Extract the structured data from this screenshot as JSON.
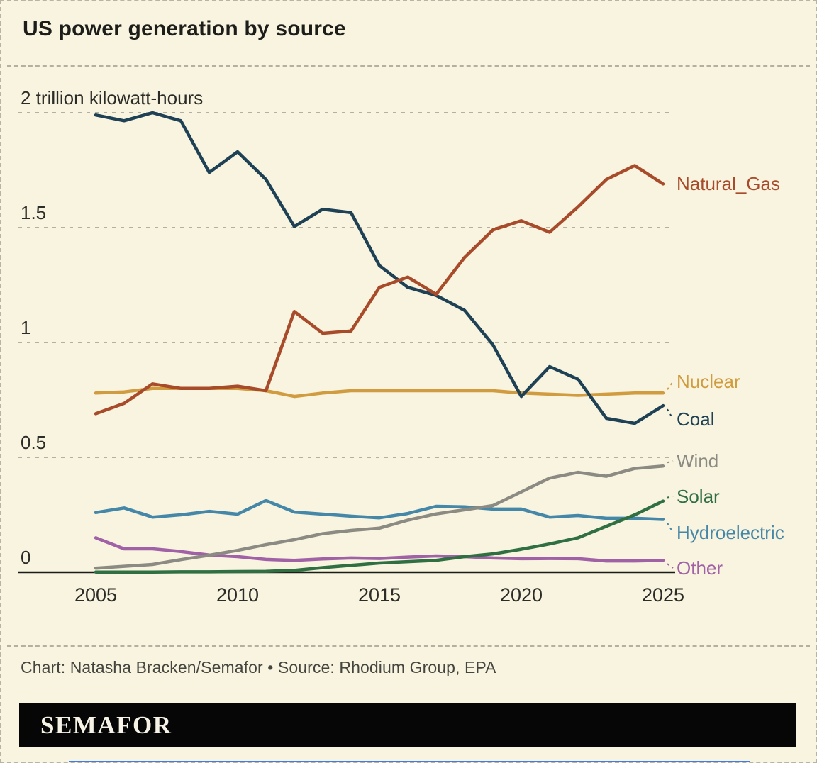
{
  "header": {
    "title": "US power generation by source"
  },
  "chart_data": {
    "type": "line",
    "title": "US power generation by source",
    "unit_label": "2 trillion kilowatt-hours",
    "x": [
      2005,
      2006,
      2007,
      2008,
      2009,
      2010,
      2011,
      2012,
      2013,
      2014,
      2015,
      2016,
      2017,
      2018,
      2019,
      2020,
      2021,
      2022,
      2023,
      2024,
      2025
    ],
    "x_ticks": [
      "2005",
      "2010",
      "2015",
      "2020",
      "2025"
    ],
    "y_ticks": [
      {
        "value": 2.0,
        "label": "2 trillion kilowatt-hours"
      },
      {
        "value": 1.5,
        "label": "1.5"
      },
      {
        "value": 1.0,
        "label": "1"
      },
      {
        "value": 0.5,
        "label": "0.5"
      },
      {
        "value": 0.0,
        "label": "0"
      }
    ],
    "ylim": [
      0,
      2.05
    ],
    "grid": "horizontal-dashed",
    "legend_position": "right-of-line-ends",
    "series": [
      {
        "name": "Nuclear",
        "color": "#d19c40",
        "values": [
          0.78,
          0.785,
          0.8,
          0.8,
          0.8,
          0.8,
          0.79,
          0.765,
          0.78,
          0.79,
          0.79,
          0.79,
          0.79,
          0.79,
          0.79,
          0.78,
          0.775,
          0.77,
          0.775,
          0.78,
          0.78
        ]
      },
      {
        "name": "Hydroelectric",
        "color": "#4587a8",
        "values": [
          0.26,
          0.28,
          0.24,
          0.25,
          0.265,
          0.253,
          0.312,
          0.262,
          0.253,
          0.244,
          0.237,
          0.256,
          0.287,
          0.285,
          0.275,
          0.275,
          0.24,
          0.247,
          0.235,
          0.235,
          0.23
        ]
      },
      {
        "name": "Other",
        "color": "#a061a6",
        "values": [
          0.15,
          0.102,
          0.102,
          0.09,
          0.075,
          0.068,
          0.056,
          0.052,
          0.058,
          0.062,
          0.06,
          0.066,
          0.071,
          0.068,
          0.062,
          0.059,
          0.06,
          0.059,
          0.049,
          0.049,
          0.052
        ]
      },
      {
        "name": "Wind",
        "color": "#8c8b83",
        "values": [
          0.018,
          0.026,
          0.034,
          0.055,
          0.074,
          0.095,
          0.12,
          0.142,
          0.168,
          0.182,
          0.192,
          0.227,
          0.254,
          0.272,
          0.29,
          0.35,
          0.41,
          0.435,
          0.418,
          0.452,
          0.462
        ]
      },
      {
        "name": "Solar",
        "color": "#2f6f42",
        "values": [
          0.001,
          0.001,
          0.001,
          0.002,
          0.002,
          0.003,
          0.004,
          0.008,
          0.02,
          0.03,
          0.04,
          0.046,
          0.052,
          0.068,
          0.08,
          0.1,
          0.123,
          0.15,
          0.2,
          0.25,
          0.31
        ]
      },
      {
        "name": "Coal",
        "color": "#1f4156",
        "values": [
          1.99,
          1.965,
          2.0,
          1.965,
          1.74,
          1.83,
          1.71,
          1.505,
          1.58,
          1.565,
          1.335,
          1.24,
          1.205,
          1.14,
          0.99,
          0.765,
          0.895,
          0.84,
          0.67,
          0.648,
          0.725
        ]
      },
      {
        "name": "Natural_Gas",
        "color": "#a84b2b",
        "values": [
          0.69,
          0.735,
          0.82,
          0.8,
          0.8,
          0.81,
          0.79,
          1.135,
          1.04,
          1.05,
          1.24,
          1.285,
          1.21,
          1.37,
          1.49,
          1.53,
          1.48,
          1.59,
          1.71,
          1.77,
          1.69
        ]
      }
    ]
  },
  "footer": {
    "credit": "Chart: Natasha Bracken/Semafor • Source: Rhodium Group, EPA",
    "brand": "SEMAFOR"
  },
  "colors": {
    "background": "#f8f4df",
    "grid": "#b3b0a2",
    "axis": "#1b1b19",
    "banner": "#060606",
    "bottom_bar": "#3b7cf0"
  }
}
